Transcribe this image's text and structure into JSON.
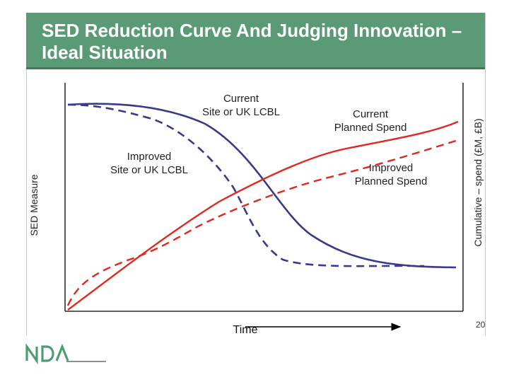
{
  "title": "SED Reduction Curve And Judging Innovation – Ideal Situation",
  "y_axis_left_label": "SED Measure",
  "y_axis_right_label": "Cumulative – spend (£M, £B)",
  "x_axis_label": "Time",
  "page_number": "20",
  "logo_text": "NDA",
  "colors": {
    "header_green": "#5a9a77",
    "header_border": "#3e7c5a",
    "sed_curve": "#3a3a8c",
    "spend_curve": "#e0281f",
    "axis": "#000000",
    "logo_green": "#4f9c74",
    "logo_gray": "#8a8f96"
  },
  "curve_labels": {
    "current_lcbl": [
      "Current",
      "Site or UK  LCBL"
    ],
    "improved_lcbl": [
      "Improved",
      "Site or UK  LCBL"
    ],
    "current_spend": [
      "Current",
      "Planned Spend"
    ],
    "improved_spend": [
      "Improved",
      "Planned Spend"
    ]
  }
}
